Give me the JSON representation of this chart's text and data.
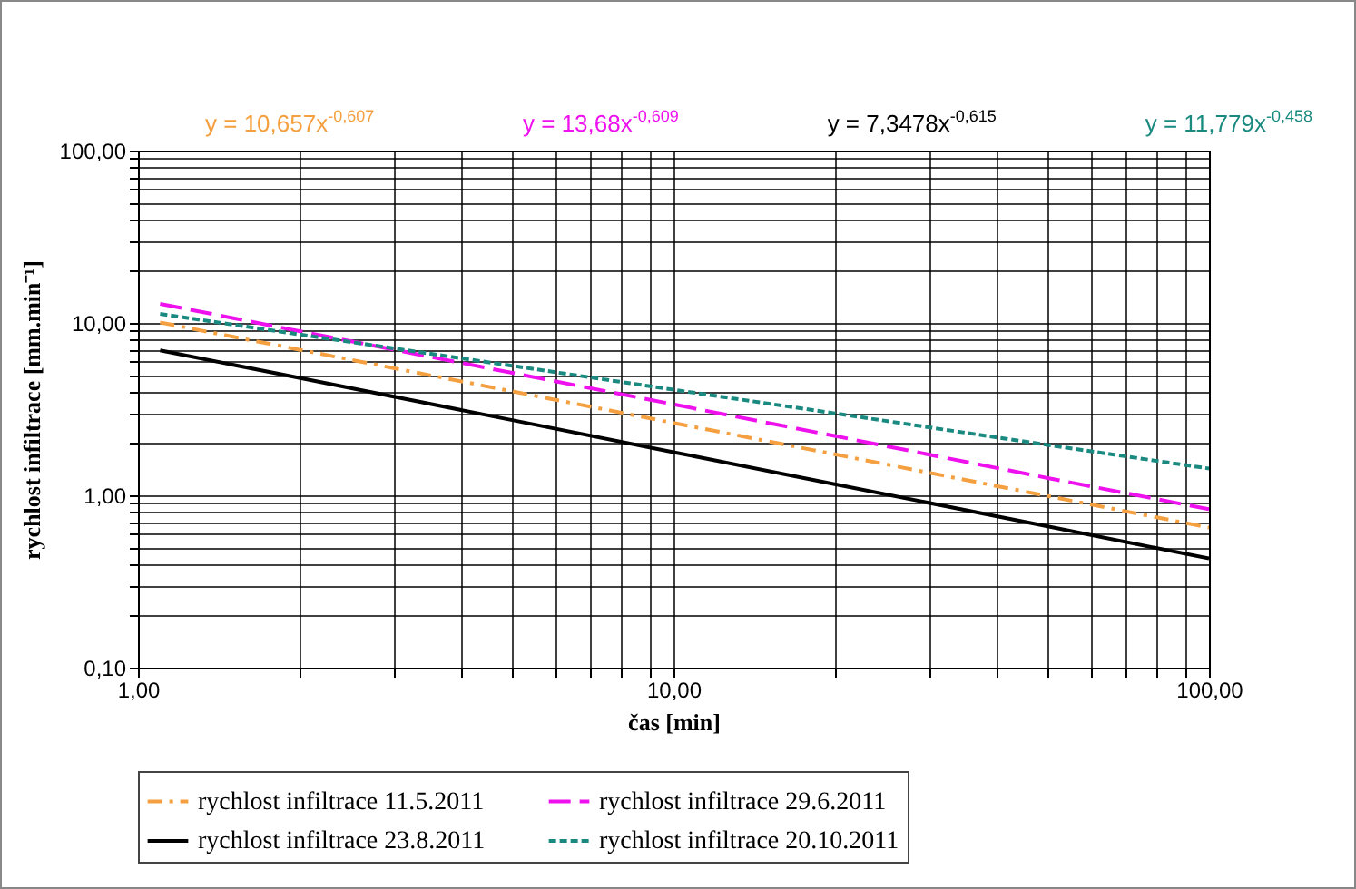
{
  "chart_data": {
    "type": "line",
    "xlabel": "čas [min]",
    "ylabel": "rychlost infiltrace [mm.min⁻¹]",
    "annotations": [
      "y = 10,657x$^{-0,607}$",
      "y = 13,68x$^{-0,609}$",
      "y = 7,3478x$^{-0,615}$",
      "y = 11,779x$^{-0,458}$"
    ],
    "x": [
      1.1,
      2,
      5,
      10,
      20,
      50,
      100
    ],
    "series": [
      {
        "name": "rychlost infiltrace 11.5.2011",
        "color": "#f5a040",
        "line_style": "dashdot",
        "values": [
          10.06,
          7.0,
          4.01,
          2.63,
          1.73,
          0.99,
          0.65
        ]
      },
      {
        "name": "rychlost infiltrace 29.6.2011",
        "color": "#ee11ee",
        "line_style": "longdash",
        "values": [
          12.91,
          8.97,
          5.13,
          3.37,
          2.21,
          1.26,
          0.83
        ]
      },
      {
        "name": "rychlost infiltrace 23.8.2011",
        "color": "#000000",
        "line_style": "solid",
        "values": [
          6.93,
          4.8,
          2.73,
          1.78,
          1.16,
          0.66,
          0.43
        ]
      },
      {
        "name": "rychlost infiltrace 20.10.2011",
        "color": "#1a8a80",
        "line_style": "dashed",
        "values": [
          11.28,
          8.58,
          5.64,
          4.1,
          2.99,
          1.96,
          1.43
        ]
      }
    ],
    "log": "xy",
    "grid": true,
    "legend": "bottom",
    "xlim": [
      1,
      100
    ],
    "xticks": [
      {
        "value": 1,
        "label": "1,00"
      },
      {
        "value": 2,
        "label": null
      },
      {
        "value": 3,
        "label": null
      },
      {
        "value": 4,
        "label": null
      },
      {
        "value": 5,
        "label": null
      },
      {
        "value": 6,
        "label": null
      },
      {
        "value": 7,
        "label": null
      },
      {
        "value": 8,
        "label": null
      },
      {
        "value": 9,
        "label": null
      },
      {
        "value": 10,
        "label": "10,00"
      },
      {
        "value": 20,
        "label": null
      },
      {
        "value": 30,
        "label": null
      },
      {
        "value": 40,
        "label": null
      },
      {
        "value": 50,
        "label": null
      },
      {
        "value": 60,
        "label": null
      },
      {
        "value": 70,
        "label": null
      },
      {
        "value": 80,
        "label": null
      },
      {
        "value": 90,
        "label": null
      },
      {
        "value": 100,
        "label": "100,00"
      }
    ],
    "ylim": [
      0.1,
      100
    ],
    "yticks": [
      {
        "value": 0.1,
        "label": "0,10"
      },
      {
        "value": 0.2,
        "label": null
      },
      {
        "value": 0.3,
        "label": null
      },
      {
        "value": 0.4,
        "label": null
      },
      {
        "value": 0.5,
        "label": null
      },
      {
        "value": 0.6,
        "label": null
      },
      {
        "value": 0.7,
        "label": null
      },
      {
        "value": 0.8,
        "label": null
      },
      {
        "value": 0.9,
        "label": null
      },
      {
        "value": 1,
        "label": "1,00"
      },
      {
        "value": 2,
        "label": null
      },
      {
        "value": 3,
        "label": null
      },
      {
        "value": 4,
        "label": null
      },
      {
        "value": 5,
        "label": null
      },
      {
        "value": 6,
        "label": null
      },
      {
        "value": 7,
        "label": null
      },
      {
        "value": 8,
        "label": null
      },
      {
        "value": 9,
        "label": null
      },
      {
        "value": 10,
        "label": "10,00"
      },
      {
        "value": 20,
        "label": null
      },
      {
        "value": 30,
        "label": null
      },
      {
        "value": 40,
        "label": null
      },
      {
        "value": 50,
        "label": null
      },
      {
        "value": 60,
        "label": null
      },
      {
        "value": 70,
        "label": null
      },
      {
        "value": 80,
        "label": null
      },
      {
        "value": 90,
        "label": null
      },
      {
        "value": 100,
        "label": "100,00"
      }
    ]
  }
}
